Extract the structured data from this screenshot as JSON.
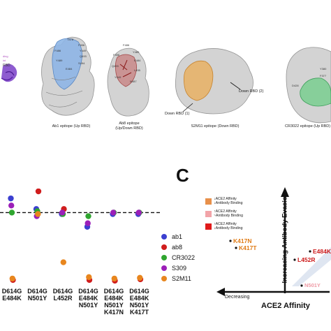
{
  "panel_a": {
    "structures": [
      {
        "id": "ab1",
        "caption": "Ab1 epitope (Up RBD)",
        "residue_labels": [
          "T478",
          "F456",
          "Y449",
          "Q493",
          "F486",
          "S494",
          "Y489",
          "E484"
        ]
      },
      {
        "id": "ab8",
        "caption_line1": "Ab8 epitope",
        "caption_line2": "(Up/Down RBD)",
        "residue_labels": [
          "F486",
          "Y489",
          "F456",
          "E484",
          "Q493",
          "L455",
          "Y449",
          "N487"
        ]
      },
      {
        "id": "s2m11",
        "caption": "S2M11 epitope (Down RBD)",
        "callouts": [
          "Down RBD (1)",
          "Down RBD (2)"
        ]
      },
      {
        "id": "cr3022",
        "caption": "CR3022 epitope (Up RBD)",
        "residue_labels": [
          "D428",
          "Y380",
          "F377"
        ]
      }
    ],
    "partial_labels": [
      "ding",
      "int",
      "RBD"
    ]
  },
  "panel_b": {
    "threshold_style": "dashed",
    "legend": [
      {
        "name": "ab1",
        "color": "#3b3fd0"
      },
      {
        "name": "ab8",
        "color": "#d01d1d"
      },
      {
        "name": "CR3022",
        "color": "#2fa52f"
      },
      {
        "name": "S309",
        "color": "#9b1fb8"
      },
      {
        "name": "S2M11",
        "color": "#e8861e"
      }
    ]
  },
  "panel_c": {
    "letter": "C",
    "key": [
      {
        "color": "#e8904a",
        "line1": "ACE2 Affinity",
        "line2": "Antibody Binding"
      },
      {
        "color": "#f2a4a8",
        "line1": "ACE2 Affinity",
        "line2": "Antibody Binding"
      },
      {
        "color": "#e01b1b",
        "line1": "ACE2 Affinity",
        "line2": "Antibody Binding"
      }
    ],
    "x_axis_label": "ACE2 Affinity",
    "x_decreasing": "Decreasing",
    "y_axis_label": "Increasing Antibody Evasion",
    "mutations": [
      {
        "label": "K417N",
        "color": "#e07b15"
      },
      {
        "label": "K417T",
        "color": "#e07b15"
      },
      {
        "label": "E484K",
        "color": "#cc1a1a"
      },
      {
        "label": "L452R",
        "color": "#cc1a1a"
      },
      {
        "label": "N501Y",
        "color": "#ef9aa5"
      }
    ]
  },
  "chart_data": {
    "type": "scatter",
    "title": "",
    "xlabel": "",
    "ylabel": "",
    "categories": [
      [
        "D614G",
        "E484K"
      ],
      [
        "D614G",
        "N501Y"
      ],
      [
        "D614G",
        "L452R"
      ],
      [
        "D614G",
        "E484K",
        "N501Y"
      ],
      [
        "D614G",
        "E484K",
        "N501Y",
        "K417N"
      ],
      [
        "D614G",
        "E484K",
        "N501Y",
        "K417T"
      ]
    ],
    "y_range": [
      0,
      1.3
    ],
    "threshold": 1.0,
    "grid": false,
    "legend_position": "right",
    "series": [
      {
        "name": "ab1",
        "color": "#3b3fd0",
        "values": [
          1.2,
          1.05,
          0.98,
          0.8,
          0.98,
          0.98
        ]
      },
      {
        "name": "ab8",
        "color": "#d01d1d",
        "values": [
          0.05,
          1.3,
          1.05,
          0.05,
          0.04,
          0.06
        ]
      },
      {
        "name": "CR3022",
        "color": "#2fa52f",
        "values": [
          1.0,
          1.02,
          0.98,
          0.95,
          1.0,
          1.0
        ]
      },
      {
        "name": "S309",
        "color": "#9b1fb8",
        "values": [
          1.1,
          0.95,
          1.0,
          0.85,
          1.0,
          1.0
        ]
      },
      {
        "name": "S2M11",
        "color": "#e8861e",
        "values": [
          0.07,
          0.98,
          0.3,
          0.09,
          0.07,
          0.08
        ]
      }
    ]
  }
}
